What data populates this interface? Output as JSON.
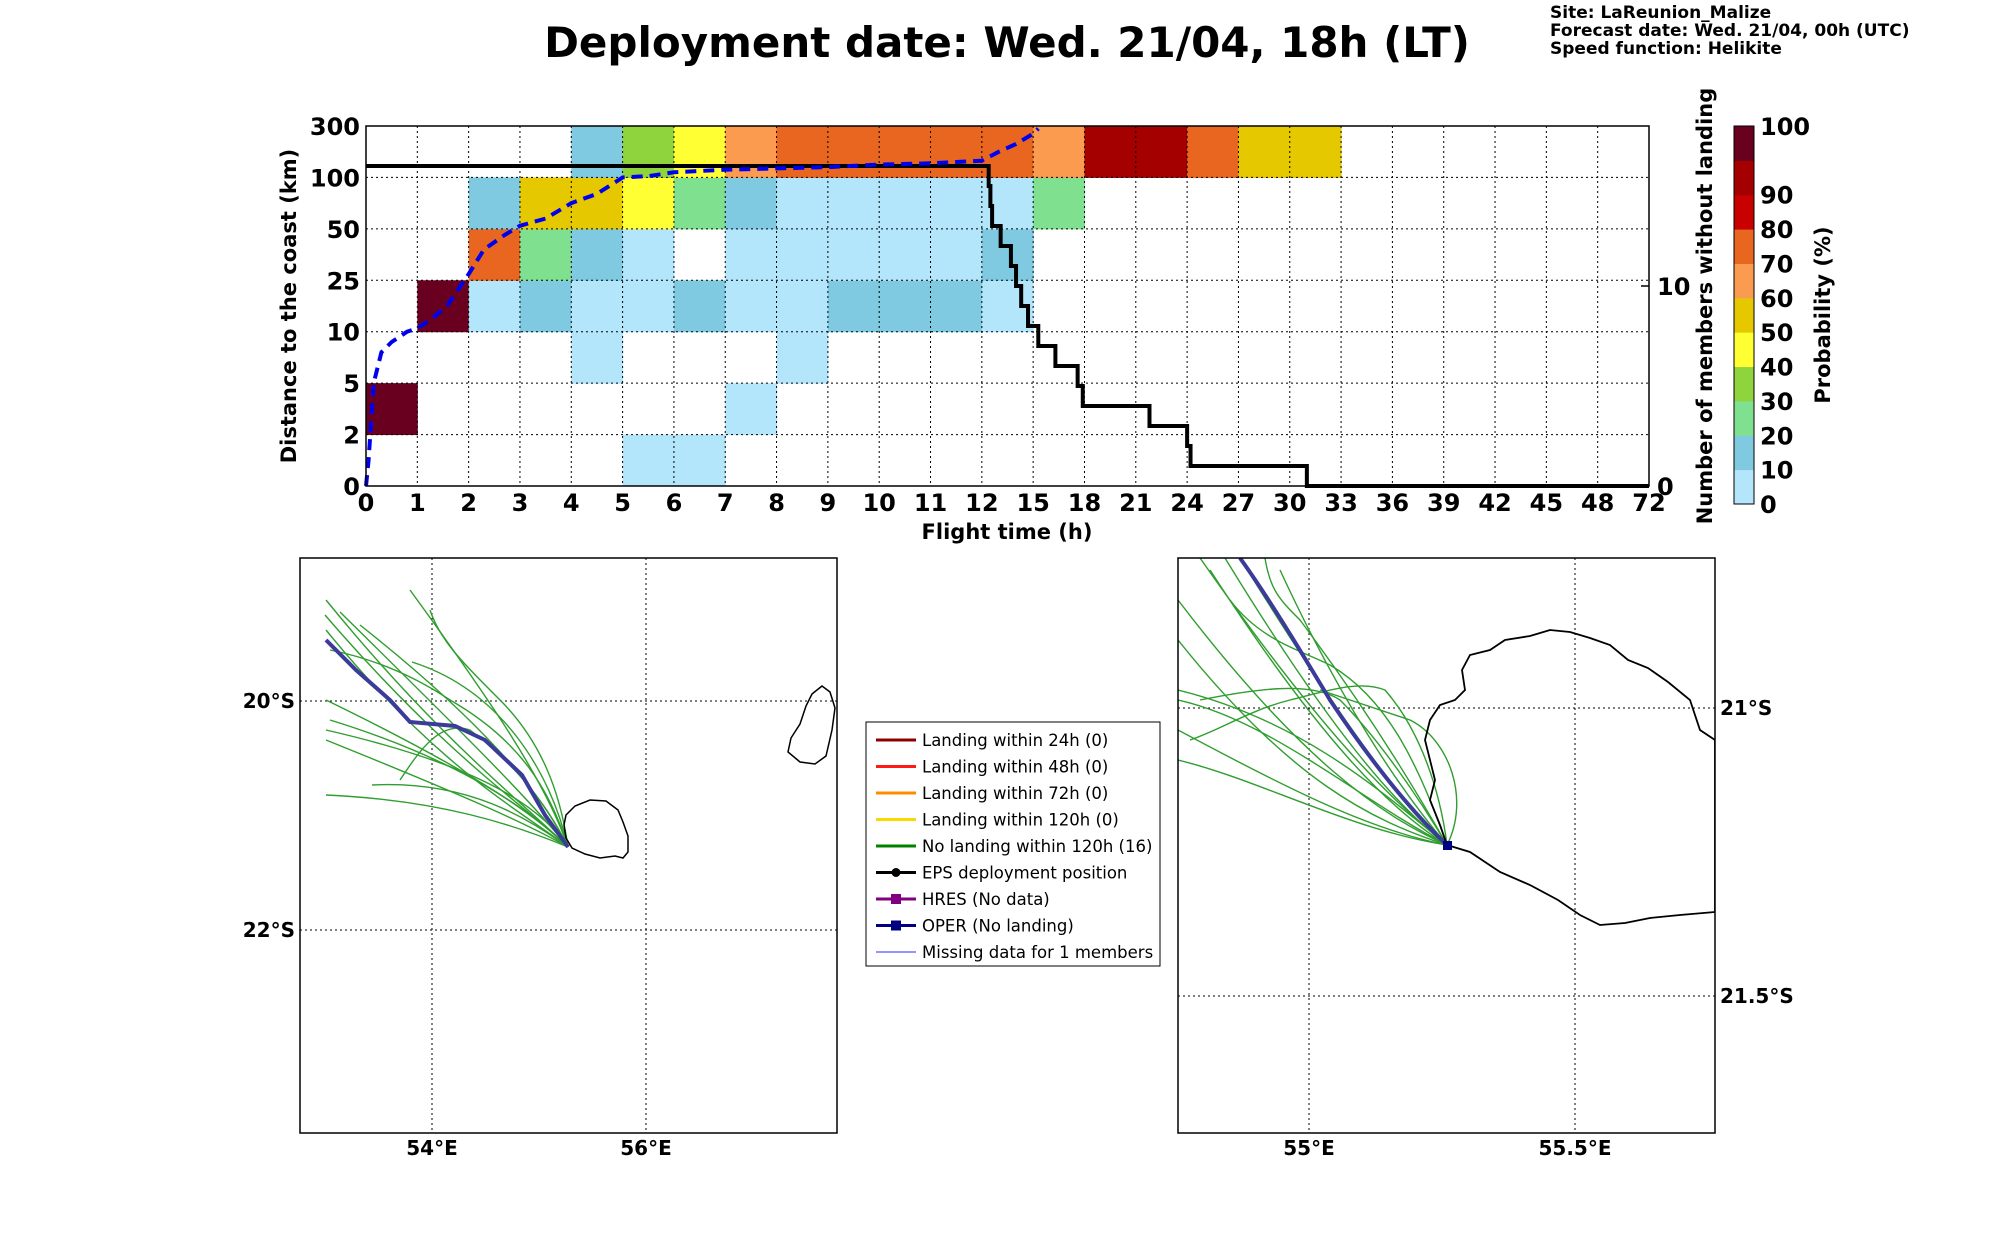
{
  "header": {
    "title": "Deployment date: Wed. 21/04, 18h (LT)",
    "site": "Site: LaReunion_Malize",
    "forecast_date": "Forecast date: Wed. 21/04, 00h (UTC)",
    "speed_function": "Speed function: Helikite"
  },
  "chart_data": [
    {
      "type": "heatmap",
      "xlabel": "Flight time (h)",
      "ylabel": "Distance to the coast (km)",
      "y2label": "Number of members without landing",
      "colorbar_label": "Probability (%)",
      "x_ticks": [
        "0",
        "1",
        "2",
        "3",
        "4",
        "5",
        "6",
        "7",
        "8",
        "9",
        "10",
        "11",
        "12",
        "15",
        "18",
        "21",
        "24",
        "27",
        "30",
        "33",
        "36",
        "39",
        "42",
        "45",
        "48",
        "72"
      ],
      "y_ticks": [
        "0",
        "2",
        "5",
        "10",
        "25",
        "50",
        "100",
        "300"
      ],
      "y2_ticks": [
        "0",
        "10"
      ],
      "colorbar_ticks": [
        "0",
        "10",
        "20",
        "30",
        "40",
        "50",
        "60",
        "70",
        "80",
        "90",
        "100"
      ],
      "colorbar_colors": [
        "#b3e5fb",
        "#7fcae1",
        "#7fe190",
        "#8fd43c",
        "#ffff33",
        "#e6c800",
        "#fa9b50",
        "#e8661f",
        "#c80000",
        "#a50000",
        "#6a0020"
      ],
      "cells": [
        {
          "x": 0,
          "y": 1,
          "p": 100
        },
        {
          "x": 1,
          "y": 3,
          "p": 100
        },
        {
          "x": 2,
          "y": 3,
          "p": 5
        },
        {
          "x": 2,
          "y": 4,
          "p": 70
        },
        {
          "x": 2,
          "y": 5,
          "p": 15
        },
        {
          "x": 3,
          "y": 3,
          "p": 15
        },
        {
          "x": 3,
          "y": 4,
          "p": 25
        },
        {
          "x": 3,
          "y": 5,
          "p": 55
        },
        {
          "x": 4,
          "y": 2,
          "p": 5
        },
        {
          "x": 4,
          "y": 3,
          "p": 5
        },
        {
          "x": 4,
          "y": 4,
          "p": 15
        },
        {
          "x": 4,
          "y": 5,
          "p": 55
        },
        {
          "x": 4,
          "y": 6,
          "p": 15
        },
        {
          "x": 5,
          "y": 0,
          "p": 5
        },
        {
          "x": 5,
          "y": 3,
          "p": 5
        },
        {
          "x": 5,
          "y": 4,
          "p": 5
        },
        {
          "x": 5,
          "y": 5,
          "p": 45
        },
        {
          "x": 5,
          "y": 6,
          "p": 35
        },
        {
          "x": 6,
          "y": 0,
          "p": 5
        },
        {
          "x": 6,
          "y": 3,
          "p": 15
        },
        {
          "x": 6,
          "y": 5,
          "p": 25
        },
        {
          "x": 6,
          "y": 6,
          "p": 45
        },
        {
          "x": 7,
          "y": 1,
          "p": 5
        },
        {
          "x": 7,
          "y": 3,
          "p": 5
        },
        {
          "x": 7,
          "y": 4,
          "p": 5
        },
        {
          "x": 7,
          "y": 5,
          "p": 15
        },
        {
          "x": 7,
          "y": 6,
          "p": 65
        },
        {
          "x": 8,
          "y": 2,
          "p": 5
        },
        {
          "x": 8,
          "y": 3,
          "p": 5
        },
        {
          "x": 8,
          "y": 4,
          "p": 5
        },
        {
          "x": 8,
          "y": 5,
          "p": 5
        },
        {
          "x": 8,
          "y": 6,
          "p": 75
        },
        {
          "x": 9,
          "y": 3,
          "p": 15
        },
        {
          "x": 9,
          "y": 4,
          "p": 5
        },
        {
          "x": 9,
          "y": 5,
          "p": 5
        },
        {
          "x": 9,
          "y": 6,
          "p": 75
        },
        {
          "x": 10,
          "y": 3,
          "p": 15
        },
        {
          "x": 10,
          "y": 4,
          "p": 5
        },
        {
          "x": 10,
          "y": 5,
          "p": 5
        },
        {
          "x": 10,
          "y": 6,
          "p": 75
        },
        {
          "x": 11,
          "y": 3,
          "p": 15
        },
        {
          "x": 11,
          "y": 4,
          "p": 5
        },
        {
          "x": 11,
          "y": 5,
          "p": 5
        },
        {
          "x": 11,
          "y": 6,
          "p": 75
        },
        {
          "x": 12,
          "y": 3,
          "p": 5
        },
        {
          "x": 12,
          "y": 4,
          "p": 15
        },
        {
          "x": 12,
          "y": 5,
          "p": 5
        },
        {
          "x": 12,
          "y": 6,
          "p": 75
        },
        {
          "x": 13,
          "y": 5,
          "p": 25
        },
        {
          "x": 13,
          "y": 6,
          "p": 65
        },
        {
          "x": 14,
          "y": 6,
          "p": 95
        },
        {
          "x": 15,
          "y": 6,
          "p": 95
        },
        {
          "x": 16,
          "y": 6,
          "p": 75
        },
        {
          "x": 17,
          "y": 6,
          "p": 55
        },
        {
          "x": 18,
          "y": 6,
          "p": 55
        }
      ],
      "members_without_landing": {
        "x": [
          0,
          0.05,
          12.35,
          12.4,
          12.5,
          12.6,
          13.1,
          13.7,
          14.0,
          14.3,
          14.7,
          15.3,
          16.3,
          17.6,
          17.9,
          21.8,
          24.0,
          24.2,
          24.8,
          25.1,
          30.8,
          31.0,
          72
        ],
        "y": [
          16,
          16,
          16,
          15,
          14,
          13,
          12,
          11,
          10,
          9,
          8,
          7,
          6,
          5,
          4,
          3,
          2,
          1,
          1,
          1,
          1,
          0,
          0
        ]
      },
      "mean_distance_curve": {
        "x": [
          0,
          0.05,
          0.15,
          0.3,
          0.5,
          0.8,
          1.0,
          1.3,
          1.6,
          2.0,
          2.3,
          2.7,
          3.0,
          3.5,
          4.0,
          4.5,
          5.0,
          5.5,
          6.0,
          7.0,
          8.0,
          9.0,
          10.0,
          11.0,
          11.5,
          12.0,
          13.0,
          14.0,
          15.0,
          15.3
        ],
        "y": [
          0,
          1,
          5,
          8,
          9,
          10,
          11,
          14,
          18,
          28,
          40,
          47,
          53,
          60,
          75,
          84,
          100,
          105,
          120,
          130,
          135,
          140,
          150,
          155,
          160,
          165,
          200,
          230,
          270,
          290
        ]
      }
    },
    {
      "type": "map",
      "name": "regional",
      "lat_ticks": [
        "20°S",
        "22°S"
      ],
      "lon_ticks": [
        "54°E",
        "56°E"
      ]
    },
    {
      "type": "map",
      "name": "zoom",
      "lat_ticks": [
        "21°S",
        "21.5°S"
      ],
      "lon_ticks": [
        "55°E",
        "55.5°E"
      ]
    }
  ],
  "legend": {
    "items": [
      {
        "label": "Landing within 24h (0)",
        "color": "#8b0000",
        "kind": "line"
      },
      {
        "label": "Landing within 48h (0)",
        "color": "#ff1a1a",
        "kind": "line"
      },
      {
        "label": "Landing within 72h (0)",
        "color": "#ff8c00",
        "kind": "line"
      },
      {
        "label": "Landing within 120h (0)",
        "color": "#ffd700",
        "kind": "line"
      },
      {
        "label": "No landing within 120h (16)",
        "color": "#008000",
        "kind": "line"
      },
      {
        "label": "EPS deployment position",
        "color": "#000000",
        "kind": "dotline"
      },
      {
        "label": "HRES (No data)",
        "color": "#800080",
        "kind": "squareline"
      },
      {
        "label": "OPER (No landing)",
        "color": "#000080",
        "kind": "squareline"
      },
      {
        "label": "Missing data for 1 members",
        "color": "#5555ff",
        "kind": "thinline"
      }
    ]
  },
  "colors": {
    "track_green": "#2f9e2f",
    "oper_track": "#3b3b9a",
    "mean_curve": "#0000ee",
    "coast": "#000000"
  }
}
